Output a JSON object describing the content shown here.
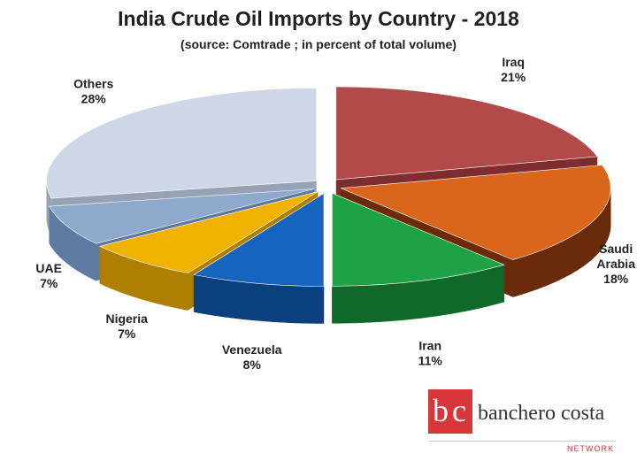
{
  "chart_data": {
    "type": "pie",
    "title": "India Crude Oil Imports by Country - 2018",
    "subtitle": "(source: Comtrade ; in percent of total volume)",
    "unit": "%",
    "slices": [
      {
        "label": "Iraq",
        "value": 21,
        "value_label": "21%",
        "color": "#b34a4a",
        "side_color": "#7d2d2d"
      },
      {
        "label": "Saudi Arabia",
        "label_lines": [
          "Saudi",
          "Arabia"
        ],
        "value": 18,
        "value_label": "18%",
        "color": "#d9661a",
        "side_color": "#6b2a0a"
      },
      {
        "label": "Iran",
        "value": 11,
        "value_label": "11%",
        "color": "#1fa246",
        "side_color": "#0f6a2a"
      },
      {
        "label": "Venezuela",
        "value": 8,
        "value_label": "8%",
        "color": "#1565c0",
        "side_color": "#0c3f7d"
      },
      {
        "label": "Nigeria",
        "value": 7,
        "value_label": "7%",
        "color": "#f0b400",
        "side_color": "#b07f00"
      },
      {
        "label": "UAE",
        "value": 7,
        "value_label": "7%",
        "color": "#8fa9cc",
        "side_color": "#5f7aa0"
      },
      {
        "label": "Others",
        "value": 28,
        "value_label": "28%",
        "color": "#cdd7e6",
        "side_color": "#97a3b5"
      }
    ]
  },
  "logo": {
    "mark_letters": [
      "b",
      "c"
    ],
    "name": "banchero costa",
    "tagline": "NETWORK"
  }
}
